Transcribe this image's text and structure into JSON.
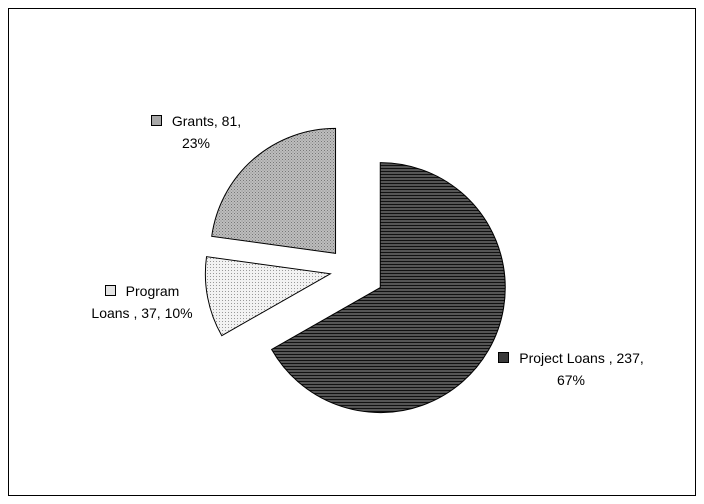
{
  "chart_data": {
    "type": "pie",
    "categories": [
      "Project Loans",
      "Program Loans",
      "Grants"
    ],
    "values": [
      237,
      37,
      81
    ],
    "data_labels": [
      "Project Loans , 237, 67%",
      "Program Loans , 37, 10%",
      "Grants, 81, 23%"
    ],
    "colors": [
      "#3a3a3a",
      "#e4e4e4",
      "#a8a8a8"
    ]
  }
}
